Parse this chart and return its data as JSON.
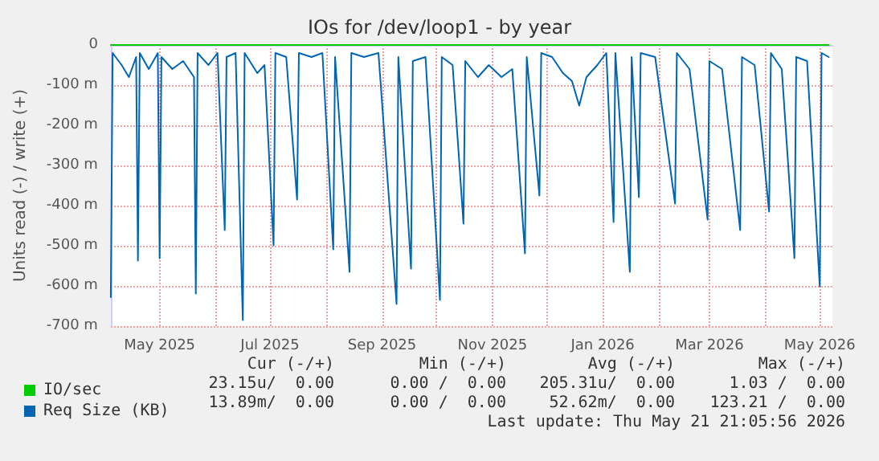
{
  "chart_data": {
    "type": "line",
    "title": "IOs for /dev/loop1 - by year",
    "ylabel": "Units read (-) / write (+)",
    "xlim": [
      "2025-04-04",
      "2026-05-08"
    ],
    "xticks": [
      {
        "value": "2025-05",
        "label": "May 2025"
      },
      {
        "value": "2025-06",
        "label": null
      },
      {
        "value": "2025-07",
        "label": "Jul 2025"
      },
      {
        "value": "2025-08",
        "label": null
      },
      {
        "value": "2025-09",
        "label": "Sep 2025"
      },
      {
        "value": "2025-10",
        "label": null
      },
      {
        "value": "2025-11",
        "label": "Nov 2025"
      },
      {
        "value": "2025-12",
        "label": null
      },
      {
        "value": "2026-01",
        "label": "Jan 2026"
      },
      {
        "value": "2026-02",
        "label": null
      },
      {
        "value": "2026-03",
        "label": "Mar 2026"
      },
      {
        "value": "2026-04",
        "label": null
      },
      {
        "value": "2026-05",
        "label": "May 2026"
      }
    ],
    "ylim": [
      -700,
      0
    ],
    "yticks": [
      {
        "value": -700,
        "label": "-700 m"
      },
      {
        "value": -600,
        "label": "-600 m"
      },
      {
        "value": -500,
        "label": "-500 m"
      },
      {
        "value": -400,
        "label": "-400 m"
      },
      {
        "value": -300,
        "label": "-300 m"
      },
      {
        "value": -200,
        "label": "-200 m"
      },
      {
        "value": -100,
        "label": "-100 m"
      },
      0
    ],
    "grid": true,
    "legend": "bottom left",
    "marker": "none",
    "line_style": "solid",
    "series": [
      {
        "name": "IO/sec",
        "color": "#00cc00",
        "x": [
          "2025-04-04",
          "2026-05-06"
        ],
        "values": [
          0,
          0
        ]
      },
      {
        "name": "Req Size (KB)",
        "color": "#0066b3",
        "x": [
          "2025-04-04",
          "2025-04-05",
          "2025-04-10",
          "2025-04-14",
          "2025-04-18",
          "2025-04-19",
          "2025-04-20",
          "2025-04-25",
          "2025-04-30",
          "2025-05-01",
          "2025-05-02",
          "2025-05-08",
          "2025-05-14",
          "2025-05-20",
          "2025-05-21",
          "2025-05-22",
          "2025-05-28",
          "2025-06-02",
          "2025-06-06",
          "2025-06-07",
          "2025-06-12",
          "2025-06-16",
          "2025-06-17",
          "2025-06-24",
          "2025-06-28",
          "2025-07-03",
          "2025-07-04",
          "2025-07-10",
          "2025-07-16",
          "2025-07-17",
          "2025-07-24",
          "2025-07-30",
          "2025-08-05",
          "2025-08-06",
          "2025-08-14",
          "2025-08-15",
          "2025-08-22",
          "2025-08-30",
          "2025-09-09",
          "2025-09-10",
          "2025-09-17",
          "2025-09-18",
          "2025-09-25",
          "2025-10-03",
          "2025-10-04",
          "2025-10-10",
          "2025-10-16",
          "2025-10-17",
          "2025-10-24",
          "2025-10-30",
          "2025-11-06",
          "2025-11-12",
          "2025-11-19",
          "2025-11-20",
          "2025-11-27",
          "2025-11-28",
          "2025-12-04",
          "2025-12-10",
          "2025-12-15",
          "2025-12-19",
          "2025-12-23",
          "2025-12-29",
          "2026-01-03",
          "2026-01-07",
          "2026-01-08",
          "2026-01-16",
          "2026-01-17",
          "2026-01-21",
          "2026-01-22",
          "2026-01-30",
          "2026-02-10",
          "2026-02-11",
          "2026-02-18",
          "2026-02-28",
          "2026-03-01",
          "2026-03-08",
          "2026-03-18",
          "2026-03-19",
          "2026-03-26",
          "2026-04-03",
          "2026-04-04",
          "2026-04-10",
          "2026-04-17",
          "2026-04-18",
          "2026-04-24",
          "2026-05-01",
          "2026-05-02",
          "2026-05-06"
        ],
        "values": [
          -628,
          -20,
          -50,
          -80,
          -30,
          -537,
          -20,
          -60,
          -20,
          -531,
          -30,
          -60,
          -40,
          -80,
          -619,
          -20,
          -50,
          -20,
          -461,
          -30,
          -20,
          -685,
          -20,
          -70,
          -50,
          -499,
          -20,
          -30,
          -385,
          -20,
          -30,
          -20,
          -509,
          -30,
          -565,
          -20,
          -30,
          -20,
          -645,
          -30,
          -557,
          -40,
          -30,
          -635,
          -30,
          -50,
          -445,
          -40,
          -80,
          -50,
          -80,
          -60,
          -519,
          -30,
          -375,
          -20,
          -30,
          -70,
          -90,
          -151,
          -80,
          -50,
          -20,
          -441,
          -20,
          -565,
          -30,
          -379,
          -20,
          -30,
          -395,
          -20,
          -60,
          -435,
          -40,
          -60,
          -461,
          -30,
          -50,
          -415,
          -20,
          -60,
          -531,
          -30,
          -40,
          -601,
          -20,
          -30
        ]
      }
    ],
    "annotations": [
      "Cur (-/+)",
      "Min (-/+)",
      "Avg (-/+)",
      "Max (-/+)",
      "23.15u/  0.00",
      "0.00 /  0.00",
      "205.31u/  0.00",
      "1.03 /  0.00",
      "13.89m/  0.00",
      "0.00 /  0.00",
      "52.62m/  0.00",
      "123.21 /  0.00",
      "Last update: Thu May 21 21:05:56 2026"
    ]
  }
}
